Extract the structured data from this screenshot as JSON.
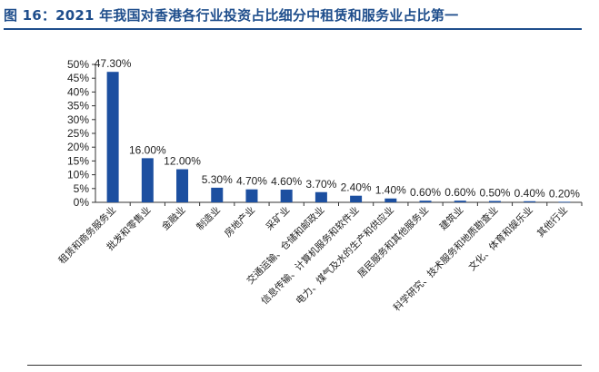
{
  "header": {
    "title": "图 16：2021 年我国对香港各行业投资占比细分中租赁和服务业占比第一"
  },
  "colors": {
    "bar": "#1c4fa0",
    "title": "#1f4e8c",
    "axis": "#333333"
  },
  "chart_data": {
    "type": "bar",
    "title": "",
    "xlabel": "",
    "ylabel": "",
    "ylim": [
      0,
      50
    ],
    "y_ticks": [
      "50%",
      "45%",
      "40%",
      "35%",
      "30%",
      "25%",
      "20%",
      "15%",
      "10%",
      "5%",
      "0%"
    ],
    "y_tick_values": [
      50,
      45,
      40,
      35,
      30,
      25,
      20,
      15,
      10,
      5,
      0
    ],
    "grid": false,
    "legend": "none",
    "categories": [
      "租赁和商务服务业",
      "批发和零售业",
      "金融业",
      "制造业",
      "房地产业",
      "采矿业",
      "交通运输、仓储和邮政业",
      "信息传输、计算机服务和软件业",
      "电力、煤气及水的生产和供应业",
      "居民服务和其他服务业",
      "建筑业",
      "科学研究、技术服务和地质勘查业",
      "文化、体育和娱乐业",
      "其他行业"
    ],
    "values": [
      47.3,
      16.0,
      12.0,
      5.3,
      4.7,
      4.6,
      3.7,
      2.4,
      1.4,
      0.6,
      0.6,
      0.5,
      0.4,
      0.2
    ],
    "data_labels": [
      "47.30%",
      "16.00%",
      "12.00%",
      "5.30%",
      "4.70%",
      "4.60%",
      "3.70%",
      "2.40%",
      "1.40%",
      "0.60%",
      "0.60%",
      "0.50%",
      "0.40%",
      "0.20%"
    ]
  }
}
